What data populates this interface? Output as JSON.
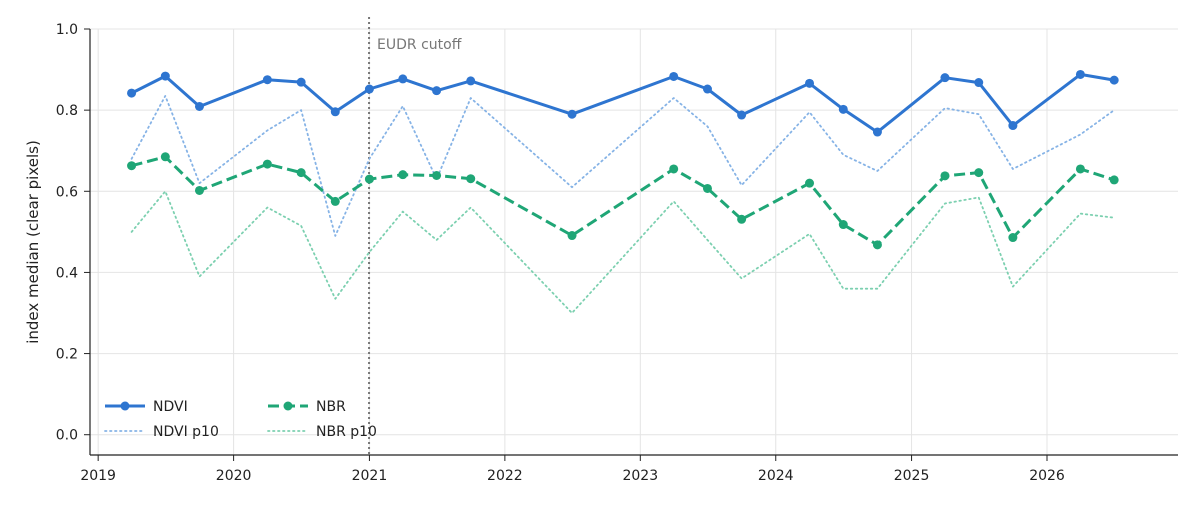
{
  "chart_data": {
    "type": "line",
    "title": "",
    "xlabel": "",
    "ylabel": "index median (clear pixels)",
    "xlim": [
      "2018-12-10",
      "2026-12-20"
    ],
    "ylim": [
      -0.05,
      1.0
    ],
    "x_ticks": [
      "2019",
      "2020",
      "2021",
      "2022",
      "2023",
      "2024",
      "2025",
      "2026"
    ],
    "y_ticks": [
      "0.0",
      "0.2",
      "0.4",
      "0.6",
      "0.8",
      "1.0"
    ],
    "grid": true,
    "legend_position": "lower-left",
    "x": [
      "2019-04-01",
      "2019-07-01",
      "2019-10-01",
      "2020-04-01",
      "2020-07-01",
      "2020-10-01",
      "2021-01-01",
      "2021-04-01",
      "2021-07-01",
      "2021-10-01",
      "2022-07-01",
      "2023-04-01",
      "2023-07-01",
      "2023-10-01",
      "2024-04-01",
      "2024-07-01",
      "2024-10-01",
      "2025-04-01",
      "2025-07-01",
      "2025-10-01",
      "2026-04-01",
      "2026-07-01"
    ],
    "series": [
      {
        "name": "NDVI",
        "color": "#2e75d0",
        "style": "solid",
        "marker": true,
        "values": [
          0.842,
          0.884,
          0.809,
          0.875,
          0.869,
          0.796,
          0.852,
          0.877,
          0.848,
          0.872,
          0.79,
          0.883,
          0.852,
          0.788,
          0.866,
          0.802,
          0.746,
          0.88,
          0.868,
          0.762,
          0.888,
          0.874
        ]
      },
      {
        "name": "NBR",
        "color": "#1fa676",
        "style": "dashed",
        "marker": true,
        "values": [
          0.663,
          0.685,
          0.602,
          0.667,
          0.646,
          0.575,
          0.63,
          0.641,
          0.639,
          0.631,
          0.491,
          0.655,
          0.607,
          0.531,
          0.62,
          0.518,
          0.468,
          0.638,
          0.646,
          0.486,
          0.655,
          0.628
        ]
      },
      {
        "name": "NDVI p10",
        "color": "#86b3e6",
        "style": "dotted",
        "marker": false,
        "values": [
          0.68,
          0.835,
          0.62,
          0.75,
          0.8,
          0.49,
          0.68,
          0.81,
          0.63,
          0.83,
          0.61,
          0.83,
          0.76,
          0.615,
          0.795,
          0.69,
          0.65,
          0.805,
          0.79,
          0.655,
          0.74,
          0.8
        ]
      },
      {
        "name": "NBR p10",
        "color": "#7cd0b0",
        "style": "dotted",
        "marker": false,
        "values": [
          0.5,
          0.6,
          0.39,
          0.56,
          0.515,
          0.335,
          0.45,
          0.55,
          0.48,
          0.56,
          0.3,
          0.575,
          0.48,
          0.385,
          0.495,
          0.36,
          0.36,
          0.57,
          0.585,
          0.365,
          0.545,
          0.535
        ]
      }
    ],
    "annotations": [
      {
        "type": "vline",
        "x": "2020-12-31",
        "label": "EUDR cutoff",
        "color": "#777777"
      }
    ]
  }
}
